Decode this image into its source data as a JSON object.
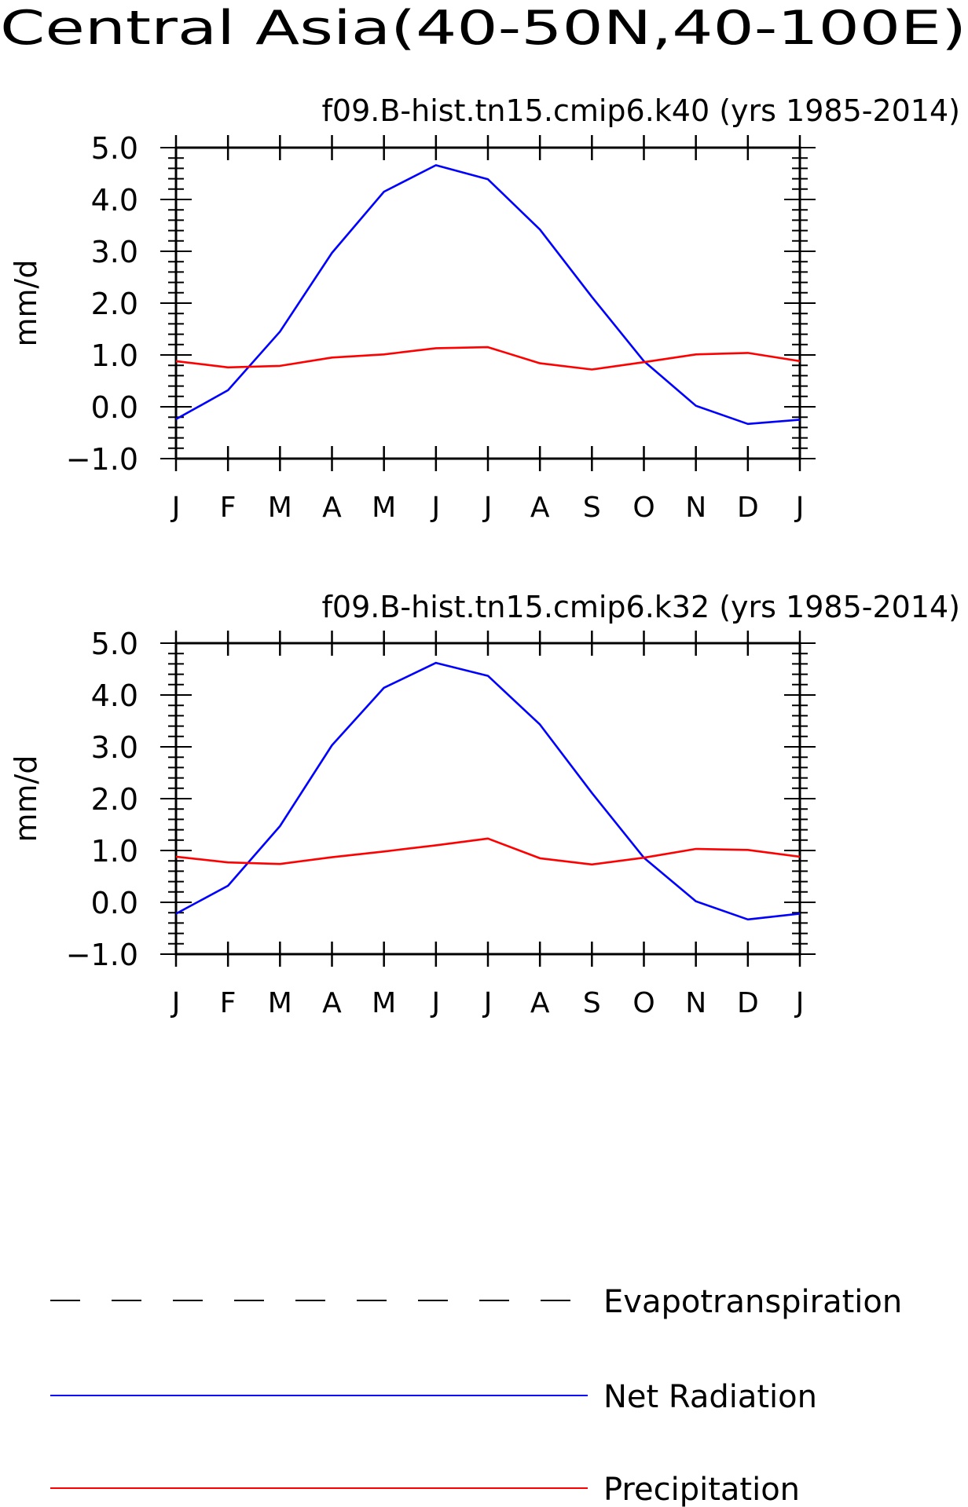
{
  "page_title": "Central Asia(40-50N,40-100E)",
  "colors": {
    "evapotranspiration": "#000000",
    "net_radiation": "#0000ff",
    "precipitation": "#ff0000",
    "axes": "#000000"
  },
  "chart_data": [
    {
      "type": "line",
      "title": "f09.B-hist.tn15.cmip6.k40 (yrs 1985-2014)",
      "xlabel": "",
      "ylabel": "mm/d",
      "categories": [
        "J",
        "F",
        "M",
        "A",
        "M",
        "J",
        "J",
        "A",
        "S",
        "O",
        "N",
        "D",
        "J"
      ],
      "ylim": [
        -1.0,
        5.0
      ],
      "yticks": [
        "5.0",
        "4.0",
        "3.0",
        "2.0",
        "1.0",
        "0.0",
        "−1.0"
      ],
      "grid": false,
      "series": [
        {
          "name": "Net Radiation",
          "color": "#0000ff",
          "values": [
            -0.24,
            0.32,
            1.45,
            2.97,
            4.15,
            4.66,
            4.39,
            3.42,
            2.12,
            0.88,
            0.02,
            -0.33,
            -0.25
          ]
        },
        {
          "name": "Precipitation",
          "color": "#ff0000",
          "values": [
            0.88,
            0.76,
            0.79,
            0.95,
            1.01,
            1.13,
            1.15,
            0.84,
            0.72,
            0.86,
            1.01,
            1.04,
            0.88
          ]
        }
      ]
    },
    {
      "type": "line",
      "title": "f09.B-hist.tn15.cmip6.k32 (yrs 1985-2014)",
      "xlabel": "",
      "ylabel": "mm/d",
      "categories": [
        "J",
        "F",
        "M",
        "A",
        "M",
        "J",
        "J",
        "A",
        "S",
        "O",
        "N",
        "D",
        "J"
      ],
      "ylim": [
        -1.0,
        5.0
      ],
      "yticks": [
        "5.0",
        "4.0",
        "3.0",
        "2.0",
        "1.0",
        "0.0",
        "−1.0"
      ],
      "grid": false,
      "series": [
        {
          "name": "Net Radiation",
          "color": "#0000ff",
          "values": [
            -0.22,
            0.32,
            1.47,
            3.03,
            4.14,
            4.62,
            4.37,
            3.43,
            2.11,
            0.86,
            0.02,
            -0.33,
            -0.22
          ]
        },
        {
          "name": "Precipitation",
          "color": "#ff0000",
          "values": [
            0.88,
            0.77,
            0.74,
            0.87,
            0.98,
            1.1,
            1.23,
            0.85,
            0.73,
            0.86,
            1.03,
            1.01,
            0.88
          ]
        }
      ]
    }
  ],
  "legend": {
    "placement": "bottom",
    "items": [
      {
        "label": "Evapotranspiration",
        "color": "#000000",
        "style": "dashed"
      },
      {
        "label": "Net Radiation",
        "color": "#0000ff",
        "style": "solid"
      },
      {
        "label": "Precipitation",
        "color": "#ff0000",
        "style": "solid"
      }
    ]
  }
}
